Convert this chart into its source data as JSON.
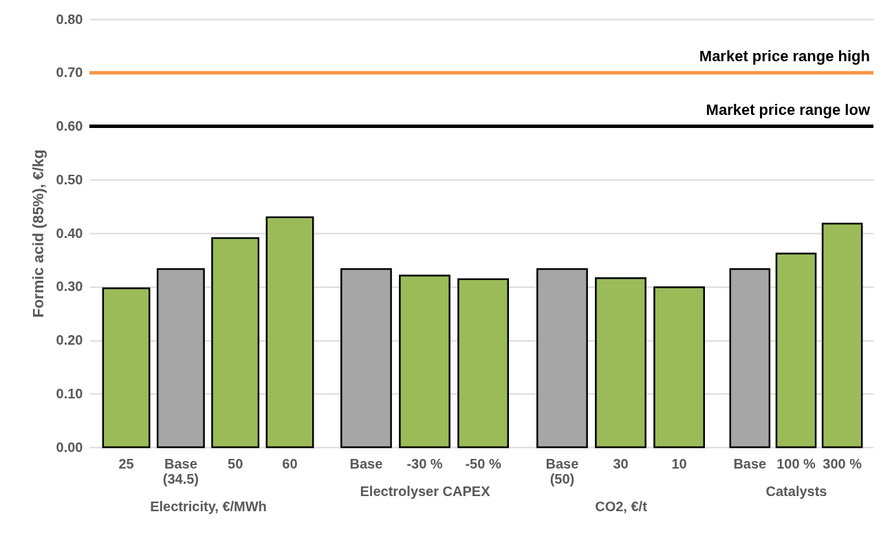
{
  "chart_data": [
    {
      "type": "bar",
      "xlabel": "Electricity, €/MWh",
      "ylabel": "Formic acid (85%), €/kg",
      "categories": [
        "25",
        "Base (34.5)",
        "50",
        "60"
      ],
      "values": [
        0.297,
        0.333,
        0.391,
        0.43
      ],
      "colors": [
        "#9bbb59",
        "#a6a6a6",
        "#9bbb59",
        "#9bbb59"
      ],
      "ylim": [
        0,
        0.8
      ],
      "yticks": [
        {
          "value": 0,
          "label": "0.00"
        },
        {
          "value": 0.1,
          "label": "0.10"
        },
        {
          "value": 0.2,
          "label": "0.20"
        },
        {
          "value": 0.3,
          "label": "0.30"
        },
        {
          "value": 0.4,
          "label": "0.40"
        },
        {
          "value": 0.5,
          "label": "0.50"
        },
        {
          "value": 0.6,
          "label": "0.60"
        },
        {
          "value": 0.7,
          "label": "0.70"
        },
        {
          "value": 0.8,
          "label": "0.80"
        }
      ],
      "grid": "y",
      "ref_lines": [
        {
          "axis": "y",
          "value": 0.7,
          "color": "#f79646"
        },
        {
          "axis": "y",
          "value": 0.6,
          "color": "#000000"
        }
      ]
    },
    {
      "type": "bar",
      "xlabel": "Electrolyser CAPEX",
      "categories": [
        "Base",
        "-30 %",
        "-50 %"
      ],
      "values": [
        0.333,
        0.321,
        0.314
      ],
      "colors": [
        "#a6a6a6",
        "#9bbb59",
        "#9bbb59"
      ],
      "ylim": [
        0,
        0.8
      ],
      "yticks": [
        0,
        0.1,
        0.2,
        0.3,
        0.4,
        0.5,
        0.6,
        0.7,
        0.8
      ],
      "grid": "y",
      "tick_labels": "x",
      "ref_lines": [
        {
          "axis": "y",
          "value": 0.7,
          "color": "#f79646"
        },
        {
          "axis": "y",
          "value": 0.6,
          "color": "#000000"
        }
      ]
    },
    {
      "type": "bar",
      "xlabel": "CO2, €/t",
      "categories": [
        "Base (50)",
        "30",
        "10"
      ],
      "values": [
        0.333,
        0.316,
        0.299
      ],
      "colors": [
        "#a6a6a6",
        "#9bbb59",
        "#9bbb59"
      ],
      "ylim": [
        0,
        0.8
      ],
      "yticks": [
        0,
        0.1,
        0.2,
        0.3,
        0.4,
        0.5,
        0.6,
        0.7,
        0.8
      ],
      "grid": "y",
      "tick_labels": "x",
      "ref_lines": [
        {
          "axis": "y",
          "value": 0.7,
          "color": "#f79646"
        },
        {
          "axis": "y",
          "value": 0.6,
          "color": "#000000"
        }
      ]
    },
    {
      "type": "bar",
      "xlabel": "Catalysts",
      "categories": [
        "Base",
        "100 %",
        "300 %"
      ],
      "values": [
        0.333,
        0.362,
        0.418
      ],
      "colors": [
        "#a6a6a6",
        "#9bbb59",
        "#9bbb59"
      ],
      "ylim": [
        0,
        0.8
      ],
      "yticks": [
        0,
        0.1,
        0.2,
        0.3,
        0.4,
        0.5,
        0.6,
        0.7,
        0.8
      ],
      "grid": "y",
      "tick_labels": "x",
      "ref_lines": [
        {
          "axis": "y",
          "value": 0.7,
          "color": "#f79646",
          "label": "Market price range high"
        },
        {
          "axis": "y",
          "value": 0.6,
          "color": "#000000",
          "label": "Market price range low"
        }
      ]
    }
  ]
}
